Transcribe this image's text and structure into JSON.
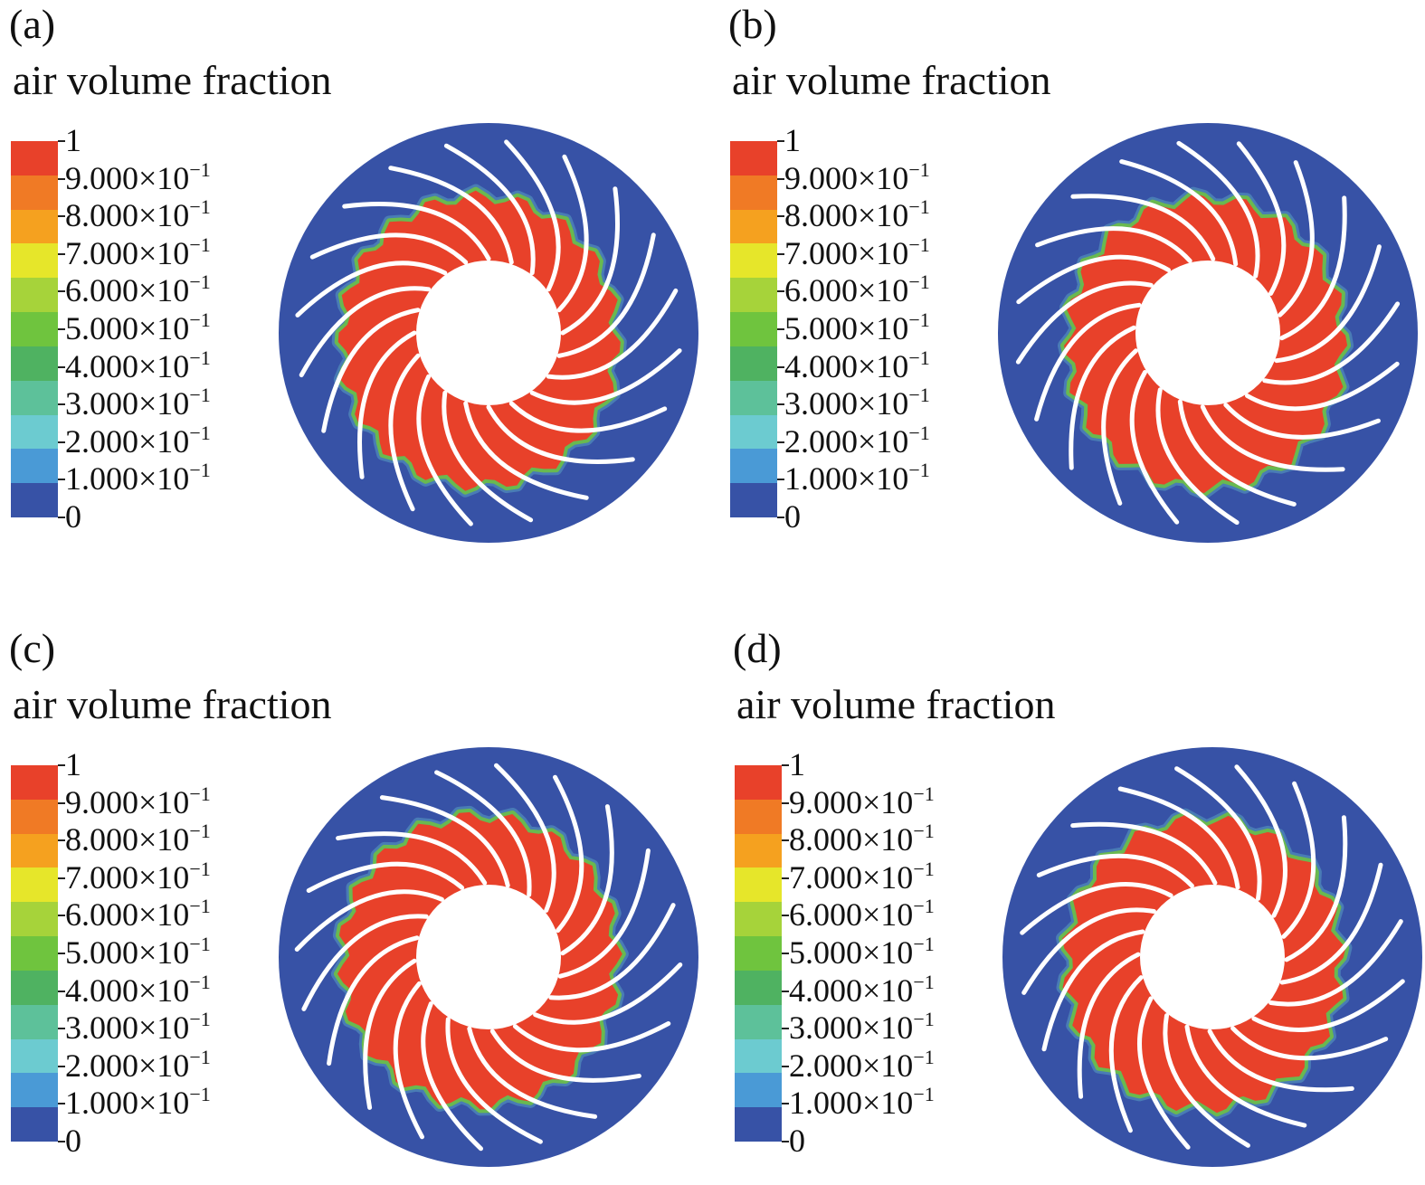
{
  "figure": {
    "title_text": "air volume fraction",
    "legend": {
      "labels": [
        "1",
        "9.000×10",
        "8.000×10",
        "7.000×10",
        "6.000×10",
        "5.000×10",
        "4.000×10",
        "3.000×10",
        "2.000×10",
        "1.000×10",
        "0"
      ],
      "exponent": "−1",
      "colors": [
        "#e8412a",
        "#f07a25",
        "#f5a11f",
        "#e6e62a",
        "#a6d33a",
        "#6fc43e",
        "#4fb261",
        "#5dc19a",
        "#6ccbd0",
        "#4a9ad6",
        "#3752a6"
      ]
    },
    "colors": {
      "water": "#3752a6",
      "air": "#e8412a",
      "interface": "#6fc43e",
      "blade": "#ffffff"
    },
    "panels": [
      {
        "id": "a",
        "label": "(a)",
        "blade_count": 20
      },
      {
        "id": "b",
        "label": "(b)",
        "blade_count": 20
      },
      {
        "id": "c",
        "label": "(c)",
        "blade_count": 20
      },
      {
        "id": "d",
        "label": "(d)",
        "blade_count": 20
      }
    ]
  }
}
